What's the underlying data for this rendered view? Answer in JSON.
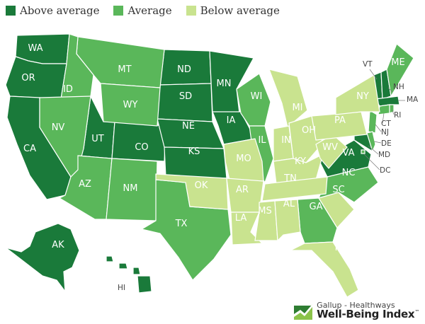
{
  "legend": [
    {
      "label": "Above average",
      "category": "above",
      "color": "#1a7a3a"
    },
    {
      "label": "Average",
      "category": "average",
      "color": "#5ab75a"
    },
    {
      "label": "Below average",
      "category": "below",
      "color": "#c9e38f"
    }
  ],
  "states": [
    {
      "abbr": "WA",
      "category": "above"
    },
    {
      "abbr": "OR",
      "category": "above"
    },
    {
      "abbr": "CA",
      "category": "above"
    },
    {
      "abbr": "UT",
      "category": "above"
    },
    {
      "abbr": "CO",
      "category": "above"
    },
    {
      "abbr": "ND",
      "category": "above"
    },
    {
      "abbr": "SD",
      "category": "above"
    },
    {
      "abbr": "NE",
      "category": "above"
    },
    {
      "abbr": "KS",
      "category": "above"
    },
    {
      "abbr": "MN",
      "category": "above"
    },
    {
      "abbr": "IA",
      "category": "above"
    },
    {
      "abbr": "VA",
      "category": "above"
    },
    {
      "abbr": "MD",
      "category": "above"
    },
    {
      "abbr": "VT",
      "category": "above"
    },
    {
      "abbr": "NH",
      "category": "above"
    },
    {
      "abbr": "MA",
      "category": "above"
    },
    {
      "abbr": "AK",
      "category": "above"
    },
    {
      "abbr": "HI",
      "category": "above"
    },
    {
      "abbr": "MT",
      "category": "average"
    },
    {
      "abbr": "ID",
      "category": "average"
    },
    {
      "abbr": "WY",
      "category": "average"
    },
    {
      "abbr": "NV",
      "category": "average"
    },
    {
      "abbr": "AZ",
      "category": "average"
    },
    {
      "abbr": "NM",
      "category": "average"
    },
    {
      "abbr": "TX",
      "category": "average"
    },
    {
      "abbr": "WI",
      "category": "average"
    },
    {
      "abbr": "IL",
      "category": "average"
    },
    {
      "abbr": "NC",
      "category": "average"
    },
    {
      "abbr": "GA",
      "category": "average"
    },
    {
      "abbr": "ME",
      "category": "average"
    },
    {
      "abbr": "CT",
      "category": "average"
    },
    {
      "abbr": "NJ",
      "category": "average"
    },
    {
      "abbr": "DE",
      "category": "average"
    },
    {
      "abbr": "RI",
      "category": "average"
    },
    {
      "abbr": "DC",
      "category": "average"
    },
    {
      "abbr": "MI",
      "category": "below"
    },
    {
      "abbr": "OH",
      "category": "below"
    },
    {
      "abbr": "IN",
      "category": "below"
    },
    {
      "abbr": "KY",
      "category": "below"
    },
    {
      "abbr": "WV",
      "category": "below"
    },
    {
      "abbr": "MO",
      "category": "below"
    },
    {
      "abbr": "OK",
      "category": "below"
    },
    {
      "abbr": "AR",
      "category": "below"
    },
    {
      "abbr": "LA",
      "category": "below"
    },
    {
      "abbr": "MS",
      "category": "below"
    },
    {
      "abbr": "AL",
      "category": "below"
    },
    {
      "abbr": "TN",
      "category": "below"
    },
    {
      "abbr": "SC",
      "category": "below"
    },
    {
      "abbr": "FL",
      "category": "below"
    },
    {
      "abbr": "PA",
      "category": "below"
    },
    {
      "abbr": "NY",
      "category": "below"
    }
  ],
  "logo": {
    "top": "Gallup - Healthways",
    "bottom": "Well-Being Index",
    "mark": "™"
  }
}
